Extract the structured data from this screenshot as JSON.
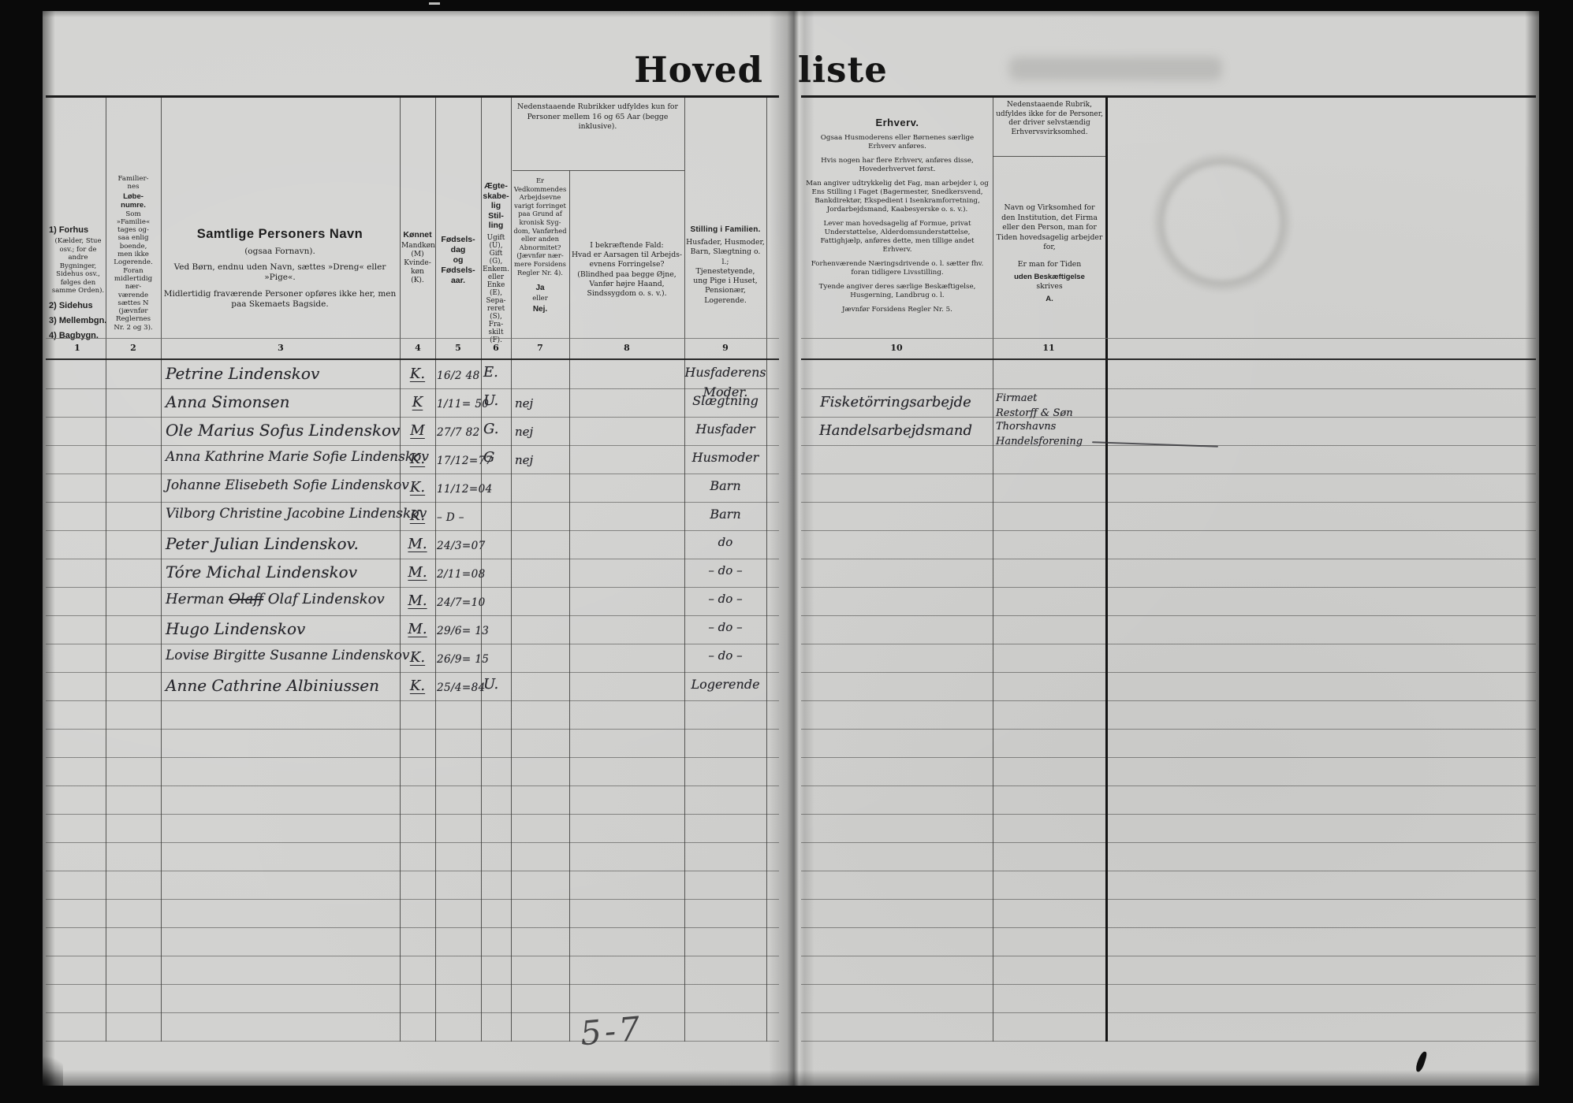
{
  "title": {
    "word1": "Hoved",
    "word2": "liste"
  },
  "column_numbers": [
    "1",
    "2",
    "3",
    "4",
    "5",
    "6",
    "7",
    "8",
    "9",
    "10",
    "11"
  ],
  "header": {
    "col1": {
      "item1": "1) Forhus",
      "note": "(Kælder, Stue osv.; for de andre Bygninger, Sidehus osv., følges den samme Orden).",
      "item2": "2) Sidehus",
      "item3": "3) Mellembgn.",
      "item4": "4) Bagbygn."
    },
    "col2": {
      "top_lines": [
        "Familier-",
        "nes"
      ],
      "bold_lines": [
        "Løbe-",
        "numre."
      ],
      "rest_lines": [
        "Som",
        "»Familie«",
        "tages og-",
        "saa enlig",
        "boende,",
        "men ikke",
        "Logerende.",
        "Foran",
        "midlertidig",
        "nær-",
        "værende",
        "sættes N",
        "(jævnfør",
        "Reglernes",
        "Nr. 2 og 3)."
      ]
    },
    "col3": {
      "title": "Samtlige Personers Navn",
      "sub": "(ogsaa Fornavn).",
      "p1": "Ved Børn, endnu uden Navn, sættes »Dreng« eller »Pige«.",
      "p2": "Midlertidig fraværende Personer opføres ikke her, men paa Skemaets Bagside."
    },
    "col4": {
      "title": "Kønnet",
      "lines": [
        "Mandkøn",
        "(M)",
        "Kvinde-",
        "køn",
        "(K)."
      ]
    },
    "col5": {
      "lines": [
        "Fødsels-",
        "dag",
        "og",
        "Fødsels-",
        "aar."
      ]
    },
    "col6": {
      "title_lines": [
        "Ægte-",
        "skabe-",
        "lig",
        "Stil-",
        "ling"
      ],
      "small_lines": [
        "Ugift",
        "(U),",
        "Gift",
        "(G),",
        "Enkem.",
        "eller",
        "Enke",
        "(E),",
        "Sepa-",
        "reret",
        "(S),",
        "Fra-",
        "skilt",
        "(F)."
      ]
    },
    "group78": {
      "lines": [
        "Nedenstaaende Rubrikker udfyldes kun for",
        "Personer mellem 16 og 65 Aar (begge inklusive)."
      ]
    },
    "col7": {
      "lines": [
        "Er",
        "Vedkommendes",
        "Arbejdsevne",
        "varigt forringet",
        "paa Grund af",
        "kronisk Syg-",
        "dom, Vanførhed",
        "eller anden",
        "Abnormitet?",
        "(Jævnfør nær-",
        "mere Forsidens",
        "Regler Nr. 4)."
      ],
      "ja": "Ja",
      "eller": "eller",
      "nej": "Nej."
    },
    "col8": {
      "lines": [
        "I bekræftende Fald:",
        "Hvad er Aarsagen til Arbejds-",
        "evnens Forringelse?",
        "(Blindhed paa begge Øjne,",
        "Vanfør højre Haand,",
        "Sindssygdom o. s. v.)."
      ]
    },
    "col9": {
      "title": "Stilling i Familien.",
      "lines": [
        "Husfader, Husmoder,",
        "Barn, Slægtning o. l.;",
        "Tjenestetyende,",
        "ung Pige i Huset,",
        "Pensionær,",
        "Logerende."
      ]
    },
    "col10": {
      "title": "Erhverv.",
      "paras": [
        "Ogsaa Husmoderens eller Børnenes særlige Erhverv anføres.",
        "Hvis nogen har flere Erhverv, anføres disse, Hovederhvervet først.",
        "Man angiver udtrykkelig det Fag, man arbejder i, og Ens Stilling i Faget (Bagermester, Snedkersvend, Bankdirektør, Ekspedient i Isenkramforretning, Jordarbejdsmand, Kaabesyerske o. s. v.).",
        "Lever man hovedsagelig af Formue, privat Understøttelse, Alderdomsunderstøttelse, Fattighjælp, anføres dette, men tillige andet Erhverv.",
        "Forhenværende Næringsdrivende o. l. sætter fhv. foran tidligere Livsstilling.",
        "Tyende angiver deres særlige Beskæftigelse, Husgerning, Landbrug o. l.",
        "Jævnfør Forsidens Regler Nr. 5."
      ]
    },
    "col11": {
      "note_lines": [
        "Nedenstaaende Rubrik,",
        "udfyldes ikke for de Personer,",
        "der driver selvstændig",
        "Erhvervsvirksomhed."
      ],
      "main_lines": [
        "Navn og Virksomhed for",
        "den Institution, det Firma",
        "eller den Person, man for",
        "Tiden hovedsagelig arbejder",
        "for,"
      ],
      "alt1": "Er man for Tiden",
      "alt2": "uden Beskæftigelse",
      "alt3": "skrives",
      "alt4": "A."
    }
  },
  "rows": [
    {
      "name": "Petrine Lindenskov",
      "sex": "K.",
      "birth": "16/2 48",
      "marital": "E.",
      "able": "",
      "position": "Husfaderens",
      "position2": "Moder."
    },
    {
      "name": "Anna Simonsen",
      "sex": "K",
      "birth": "1/11= 50",
      "marital": "U.",
      "able": "nej",
      "position": "Slægtning",
      "erhverv": "Fisketörringsarbejde",
      "employer1": "Firmaet",
      "employer2": "Restorff & Søn"
    },
    {
      "name": "Ole Marius Sofus Lindenskov",
      "sex": "M",
      "birth": "27/7 82",
      "marital": "G.",
      "able": "nej",
      "position": "Husfader",
      "erhverv": "Handelsarbejdsmand",
      "employer1": "Thorshavns",
      "employer2": "Handelsforening"
    },
    {
      "name": "Anna Kathrine Marie Sofie Lindenskov",
      "sex": "K.",
      "birth": "17/12=77",
      "marital": "G",
      "able": "nej",
      "position": "Husmoder"
    },
    {
      "name": "Johanne Elisebeth Sofie Lindenskov",
      "sex": "K.",
      "birth": "11/12=04",
      "position": "Barn"
    },
    {
      "name": "Vilborg Christine Jacobine Lindenskov",
      "sex": "K.",
      "birth": "– D –",
      "position": "Barn"
    },
    {
      "name": "Peter Julian Lindenskov.",
      "sex": "M.",
      "birth": "24/3=07",
      "position": "do"
    },
    {
      "name": "Tóre Michal Lindenskov",
      "sex": "M.",
      "birth": "2/11=08",
      "position": "– do –"
    },
    {
      "name_pre": "Herman",
      "name_struck": "Olaff",
      "name_post": "Olaf Lindenskov",
      "sex": "M.",
      "birth": "24/7=10",
      "position": "– do –"
    },
    {
      "name": "Hugo Lindenskov",
      "sex": "M.",
      "birth": "29/6= 13",
      "position": "– do –"
    },
    {
      "name": "Lovise Birgitte Susanne Lindenskov",
      "sex": "K.",
      "birth": "26/9= 15",
      "position": "– do –"
    },
    {
      "name": "Anne Cathrine Albiniussen",
      "sex": "K.",
      "birth": "25/4=84",
      "marital": "U.",
      "position": "Logerende"
    }
  ],
  "annotations": {
    "pencil_note": "5-7"
  }
}
